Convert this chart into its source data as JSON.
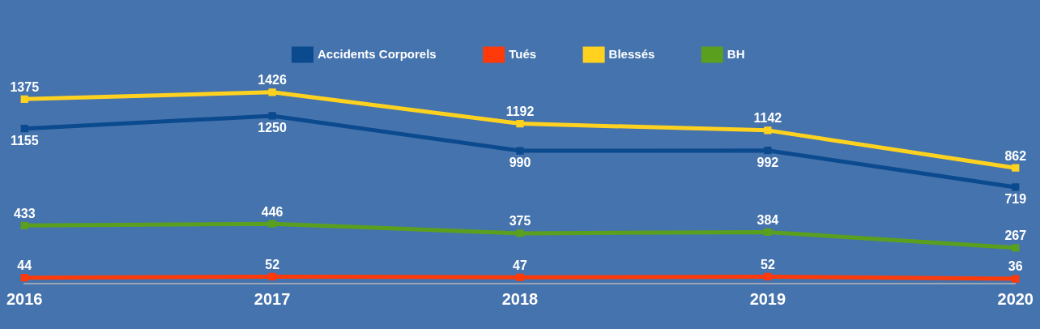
{
  "chart_data": {
    "type": "line",
    "categories": [
      "2016",
      "2017",
      "2018",
      "2019",
      "2020"
    ],
    "series": [
      {
        "name": "Accidents Corporels",
        "color": "#0b4a8e",
        "values": [
          1155,
          1250,
          990,
          992,
          719
        ]
      },
      {
        "name": "Tués",
        "color": "#ff3a0a",
        "values": [
          44,
          52,
          47,
          52,
          36
        ]
      },
      {
        "name": "Blessés",
        "color": "#ffd21f",
        "values": [
          1375,
          1426,
          1192,
          1142,
          862
        ]
      },
      {
        "name": "BH",
        "color": "#5aa01e",
        "values": [
          433,
          446,
          375,
          384,
          267
        ]
      }
    ],
    "data_labels": true,
    "legend": "top",
    "grid": false,
    "marker": "square",
    "line_style": "solid"
  }
}
